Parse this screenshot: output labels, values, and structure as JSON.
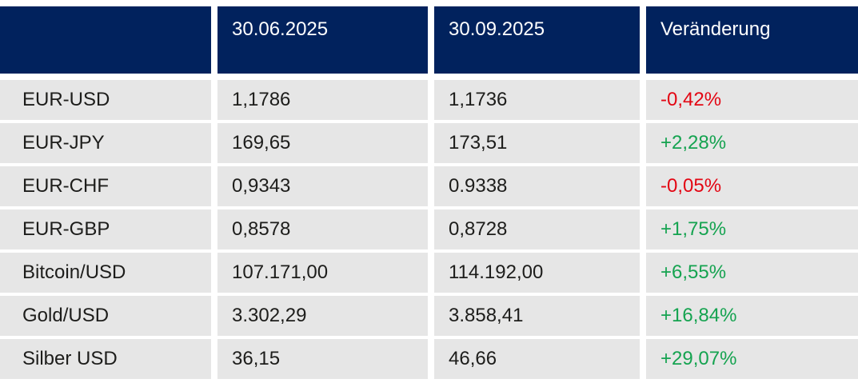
{
  "colors": {
    "header_bg": "#01225d",
    "header_text": "#ffffff",
    "row_bg": "#e6e6e6",
    "text": "#1d1d1b",
    "positive": "#15a350",
    "negative": "#e30613",
    "page_bg": "#ffffff"
  },
  "chart_data": {
    "type": "table",
    "columns": [
      "",
      "30.06.2025",
      "30.09.2025",
      "Veränderung"
    ],
    "rows": [
      {
        "label": "EUR-USD",
        "v1": "1,1786",
        "v2": "1,1736",
        "change": "-0,42%",
        "direction": "negative"
      },
      {
        "label": "EUR-JPY",
        "v1": "169,65",
        "v2": "173,51",
        "change": "+2,28%",
        "direction": "positive"
      },
      {
        "label": "EUR-CHF",
        "v1": "0,9343",
        "v2": "0.9338",
        "change": "-0,05%",
        "direction": "negative"
      },
      {
        "label": "EUR-GBP",
        "v1": "0,8578",
        "v2": "0,8728",
        "change": "+1,75%",
        "direction": "positive"
      },
      {
        "label": "Bitcoin/USD",
        "v1": "107.171,00",
        "v2": "114.192,00",
        "change": "+6,55%",
        "direction": "positive"
      },
      {
        "label": "Gold/USD",
        "v1": "3.302,29",
        "v2": "3.858,41",
        "change": "+16,84%",
        "direction": "positive"
      },
      {
        "label": "Silber USD",
        "v1": "36,15",
        "v2": "46,66",
        "change": "+29,07%",
        "direction": "positive"
      }
    ]
  }
}
